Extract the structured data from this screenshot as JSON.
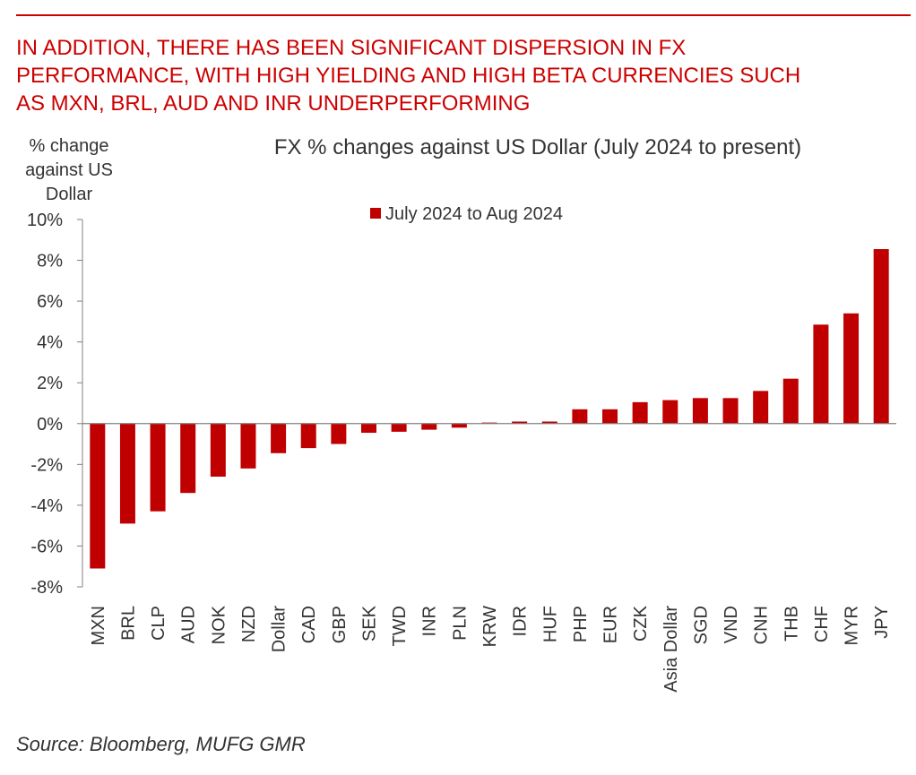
{
  "header": {
    "headline_lines": [
      "IN ADDITION, THERE HAS BEEN SIGNIFICANT DISPERSION IN FX",
      "PERFORMANCE, WITH HIGH YIELDING AND HIGH BETA CURRENCIES SUCH",
      "AS MXN, BRL, AUD AND INR UNDERPERFORMING"
    ]
  },
  "footer": {
    "source": "Source: Bloomberg, MUFG GMR"
  },
  "colors": {
    "accent": "#cc0000",
    "bar": "#c00000",
    "axis": "#808080",
    "text": "#333333"
  },
  "chart_data": {
    "type": "bar",
    "title": "FX % changes against US Dollar (July 2024 to present)",
    "ylabel_lines": [
      "% change",
      "against US",
      "Dollar"
    ],
    "xlabel": "",
    "ylim": [
      -8,
      10
    ],
    "yticks": [
      10,
      8,
      6,
      4,
      2,
      0,
      -2,
      -4,
      -6,
      -8
    ],
    "ytick_labels": [
      "10%",
      "8%",
      "6%",
      "4%",
      "2%",
      "0%",
      "-2%",
      "-4%",
      "-6%",
      "-8%"
    ],
    "legend_position": "top-center",
    "grid": false,
    "categories": [
      "MXN",
      "BRL",
      "CLP",
      "AUD",
      "NOK",
      "NZD",
      "Dollar",
      "CAD",
      "GBP",
      "SEK",
      "TWD",
      "INR",
      "PLN",
      "KRW",
      "IDR",
      "HUF",
      "PHP",
      "EUR",
      "CZK",
      "Asia Dollar",
      "SGD",
      "VND",
      "CNH",
      "THB",
      "CHF",
      "MYR",
      "JPY"
    ],
    "series": [
      {
        "name": "July 2024 to Aug 2024",
        "values": [
          -7.1,
          -4.9,
          -4.3,
          -3.4,
          -2.6,
          -2.2,
          -1.45,
          -1.2,
          -1.0,
          -0.45,
          -0.4,
          -0.3,
          -0.2,
          0.05,
          0.1,
          0.1,
          0.7,
          0.7,
          1.05,
          1.15,
          1.25,
          1.25,
          1.6,
          2.2,
          4.85,
          5.4,
          8.55
        ]
      }
    ]
  }
}
